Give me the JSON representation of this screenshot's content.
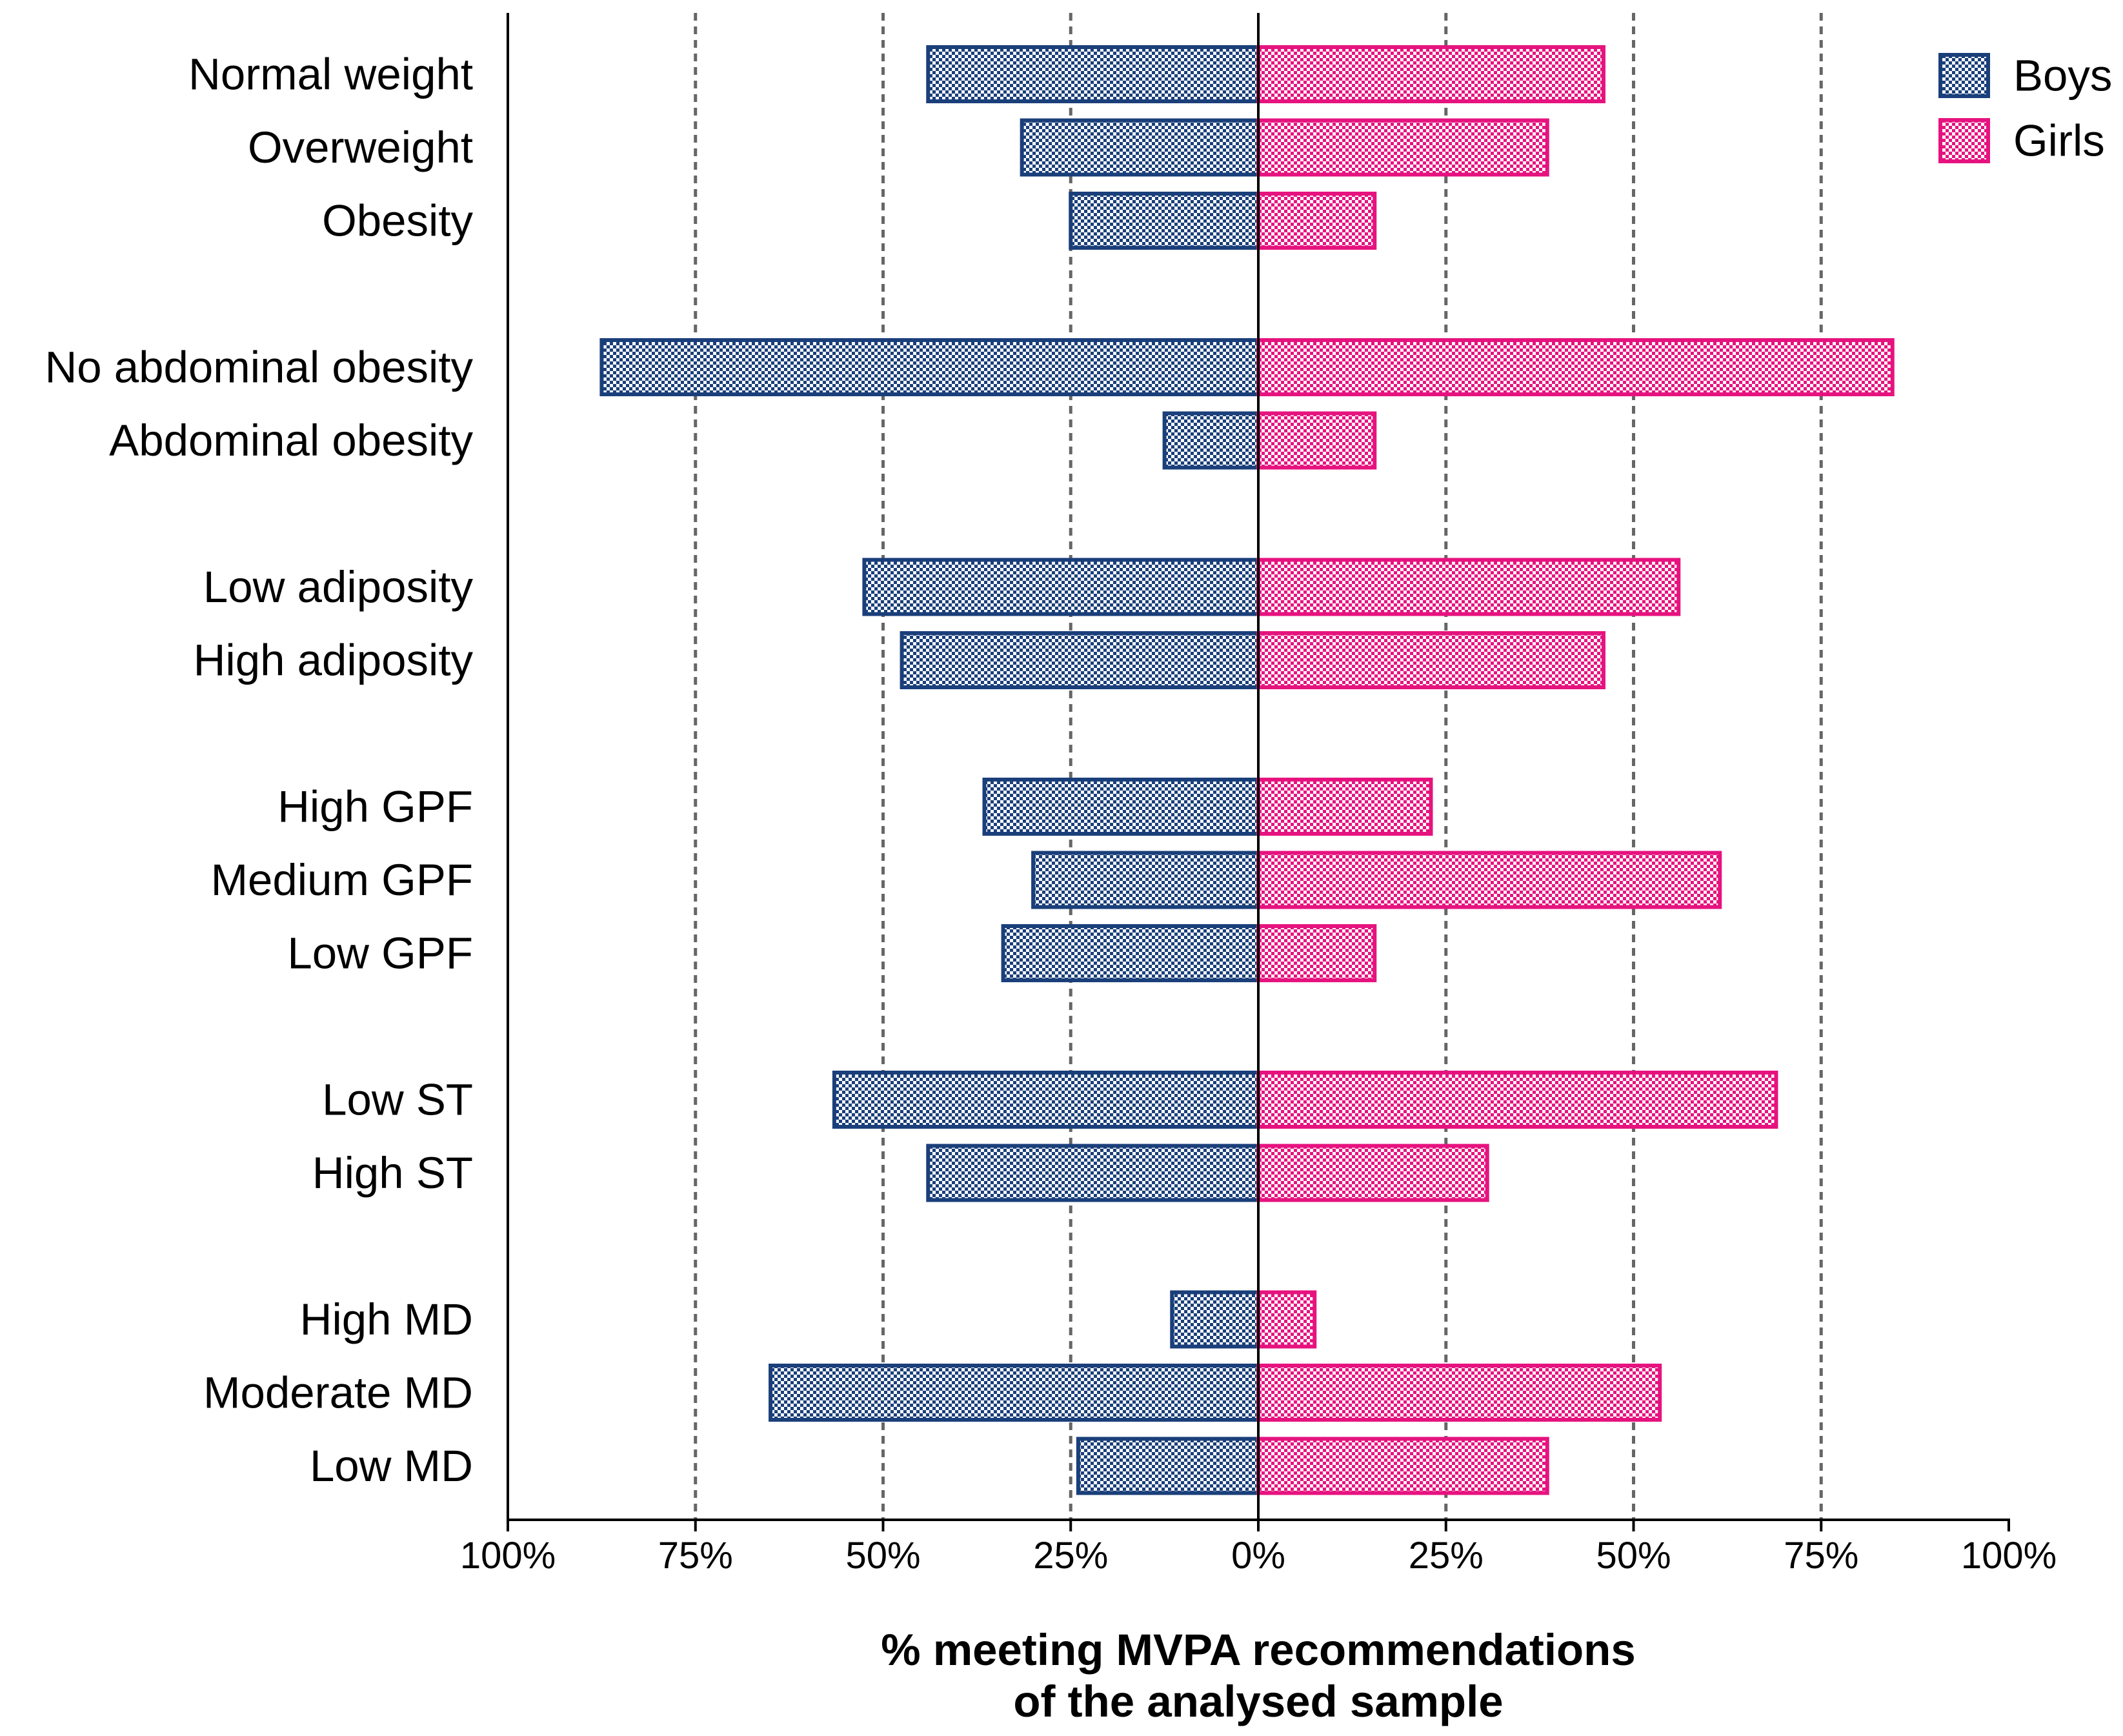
{
  "chart_data": {
    "type": "bar",
    "orientation": "horizontal-diverging",
    "title": "",
    "xlabel": [
      "% meeting MVPA recommendations",
      "of the analysed sample"
    ],
    "ylabel": "",
    "xlim": [
      -100,
      100
    ],
    "x_ticks": [
      -100,
      -75,
      -50,
      -25,
      0,
      25,
      50,
      75,
      100
    ],
    "x_tick_labels": [
      "100%",
      "75%",
      "50%",
      "25%",
      "0%",
      "25%",
      "50%",
      "75%",
      "100%"
    ],
    "grid": "vertical dashed at 25% steps",
    "legend_position": "top-right",
    "groups": [
      [
        "Normal weight",
        "Overweight",
        "Obesity"
      ],
      [
        "No abdominal obesity",
        "Abdominal obesity"
      ],
      [
        "Low adiposity",
        "High adiposity"
      ],
      [
        "High GPF",
        "Medium GPF",
        "Low GPF"
      ],
      [
        "Low ST",
        "High ST"
      ],
      [
        "High MD",
        "Moderate MD",
        "Low MD"
      ]
    ],
    "categories": [
      "Normal weight",
      "Overweight",
      "Obesity",
      "No abdominal obesity",
      "Abdominal obesity",
      "Low adiposity",
      "High adiposity",
      "High GPF",
      "Medium GPF",
      "Low GPF",
      "Low ST",
      "High ST",
      "High MD",
      "Moderate MD",
      "Low MD"
    ],
    "series": [
      {
        "name": "Boys",
        "side": "left",
        "color": "#1a3f7a",
        "values": [
          44,
          31.5,
          25,
          87.5,
          12.5,
          52.5,
          47.5,
          36.5,
          30,
          34,
          56.5,
          44,
          11.5,
          65,
          24
        ]
      },
      {
        "name": "Girls",
        "side": "right",
        "color": "#e6137f",
        "values": [
          46,
          38.5,
          15.5,
          84.5,
          15.5,
          56,
          46,
          23,
          61.5,
          15.5,
          69,
          30.5,
          7.5,
          53.5,
          38.5
        ]
      }
    ]
  }
}
